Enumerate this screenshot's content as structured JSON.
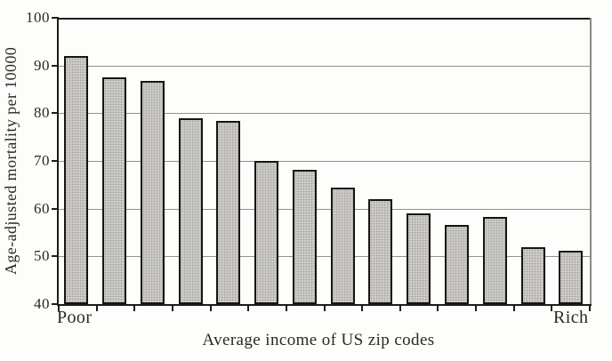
{
  "chart_data": {
    "type": "bar",
    "xlabel": "Average income of US zip codes",
    "ylabel": "Age-adjusted mortality per 10000",
    "x_end_labels": {
      "left": "Poor",
      "right": "Rich"
    },
    "values": [
      92,
      87.5,
      86.7,
      79,
      78.4,
      70,
      68.2,
      64.5,
      62,
      59,
      56.5,
      58.2,
      52,
      51.2
    ],
    "yticks": [
      100,
      90,
      80,
      70,
      60,
      50,
      40
    ],
    "ylim": [
      40,
      100
    ],
    "n_bars": 14,
    "grid": "horizontal gridlines at labeled y ticks",
    "legend": "none"
  },
  "colors": {
    "background": "#fdfdfb",
    "bar_fill": "#cdccc8",
    "bar_stipple": "#a09e99",
    "bar_border": "#161513",
    "axis": "#1e1c1a",
    "gridline": "#91918d",
    "text": "#2b2824"
  }
}
